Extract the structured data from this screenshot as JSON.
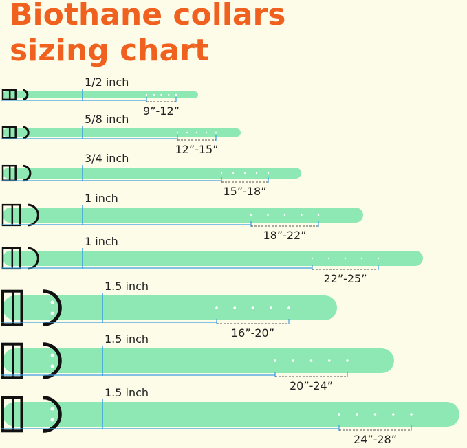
{
  "title": [
    "Biothane collars",
    "sizing chart"
  ],
  "collars": [
    {
      "width": "1/2 inch",
      "size": "9”-12”"
    },
    {
      "width": "5/8 inch",
      "size": "12”-15”"
    },
    {
      "width": "3/4 inch",
      "size": "15”-18”"
    },
    {
      "width": "1 inch",
      "size": "18”-22”"
    },
    {
      "width": "1 inch",
      "size": "22”-25”"
    },
    {
      "width": "1.5 inch",
      "size": "16”-20”"
    },
    {
      "width": "1.5 inch",
      "size": "20”-24”"
    },
    {
      "width": "1.5 inch",
      "size": "24”-28”"
    }
  ]
}
